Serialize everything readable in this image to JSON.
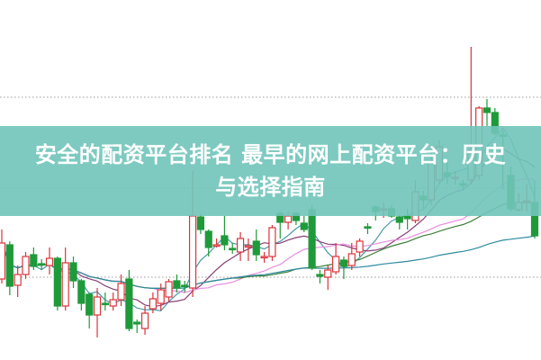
{
  "title": {
    "line1": "安全的配资平台排名 最早的网上配资平台：历史",
    "line2": "与选择指南"
  },
  "colors": {
    "up": "#d9343a",
    "down": "#1f9a3a",
    "banner": "#70c4ba",
    "ma_colors": [
      "#4a9aa8",
      "#8a3f78",
      "#e88ee0",
      "#3d7f3a",
      "#2f8aa0"
    ]
  },
  "chart_data": {
    "type": "candlestick",
    "title": "",
    "axes_visible": false,
    "grid": "dotted horizontal lines",
    "ylim": [
      0,
      400
    ],
    "ohlc": [
      [
        90,
        145,
        85,
        130
      ],
      [
        128,
        132,
        72,
        82
      ],
      [
        83,
        105,
        70,
        95
      ],
      [
        95,
        120,
        90,
        115
      ],
      [
        117,
        125,
        100,
        104
      ],
      [
        107,
        112,
        100,
        106
      ],
      [
        105,
        125,
        95,
        113
      ],
      [
        113,
        115,
        55,
        60
      ],
      [
        60,
        125,
        55,
        108
      ],
      [
        108,
        115,
        80,
        88
      ],
      [
        88,
        90,
        55,
        63
      ],
      [
        73,
        75,
        35,
        50
      ],
      [
        50,
        80,
        25,
        70
      ],
      [
        63,
        75,
        55,
        62
      ],
      [
        60,
        75,
        55,
        67
      ],
      [
        67,
        95,
        60,
        85
      ],
      [
        90,
        100,
        32,
        35
      ],
      [
        42,
        45,
        30,
        40
      ],
      [
        35,
        60,
        28,
        52
      ],
      [
        57,
        75,
        52,
        68
      ],
      [
        63,
        85,
        55,
        78
      ],
      [
        70,
        90,
        65,
        87
      ],
      [
        88,
        95,
        75,
        80
      ],
      [
        83,
        88,
        75,
        82
      ],
      [
        80,
        210,
        70,
        160
      ],
      [
        159,
        162,
        140,
        145
      ],
      [
        143,
        145,
        115,
        125
      ],
      [
        128,
        135,
        125,
        128
      ],
      [
        138,
        160,
        122,
        128
      ],
      [
        124,
        130,
        118,
        123
      ],
      [
        120,
        142,
        110,
        135
      ],
      [
        127,
        135,
        110,
        127
      ],
      [
        132,
        145,
        110,
        117
      ],
      [
        115,
        120,
        108,
        115
      ],
      [
        115,
        150,
        110,
        147
      ],
      [
        163,
        165,
        135,
        153
      ],
      [
        153,
        165,
        145,
        160
      ],
      [
        163,
        165,
        150,
        155
      ],
      [
        152,
        160,
        142,
        145
      ],
      [
        167,
        172,
        100,
        102
      ],
      [
        95,
        100,
        85,
        93
      ],
      [
        92,
        105,
        78,
        100
      ],
      [
        98,
        130,
        95,
        115
      ],
      [
        111,
        115,
        90,
        104
      ],
      [
        105,
        130,
        100,
        118
      ],
      [
        120,
        135,
        115,
        132
      ],
      [
        148,
        152,
        140,
        147
      ],
      [
        170,
        172,
        155,
        165
      ],
      [
        168,
        175,
        158,
        168
      ],
      [
        168,
        172,
        158,
        160
      ],
      [
        159,
        162,
        145,
        153
      ],
      [
        160,
        168,
        145,
        157
      ],
      [
        155,
        200,
        152,
        187
      ],
      [
        182,
        188,
        168,
        178
      ],
      [
        178,
        235,
        172,
        220
      ],
      [
        200,
        245,
        195,
        237
      ],
      [
        208,
        220,
        195,
        204
      ],
      [
        203,
        210,
        195,
        203
      ],
      [
        196,
        200,
        188,
        194
      ],
      [
        200,
        348,
        195,
        233
      ],
      [
        205,
        282,
        200,
        280
      ],
      [
        280,
        290,
        260,
        275
      ],
      [
        275,
        280,
        250,
        252
      ],
      [
        250,
        255,
        190,
        249
      ],
      [
        205,
        215,
        165,
        168
      ],
      [
        167,
        185,
        165,
        175
      ],
      [
        177,
        195,
        165,
        177
      ],
      [
        175,
        200,
        135,
        138
      ]
    ],
    "moving_averages": [
      5,
      10,
      20,
      30,
      60
    ]
  }
}
